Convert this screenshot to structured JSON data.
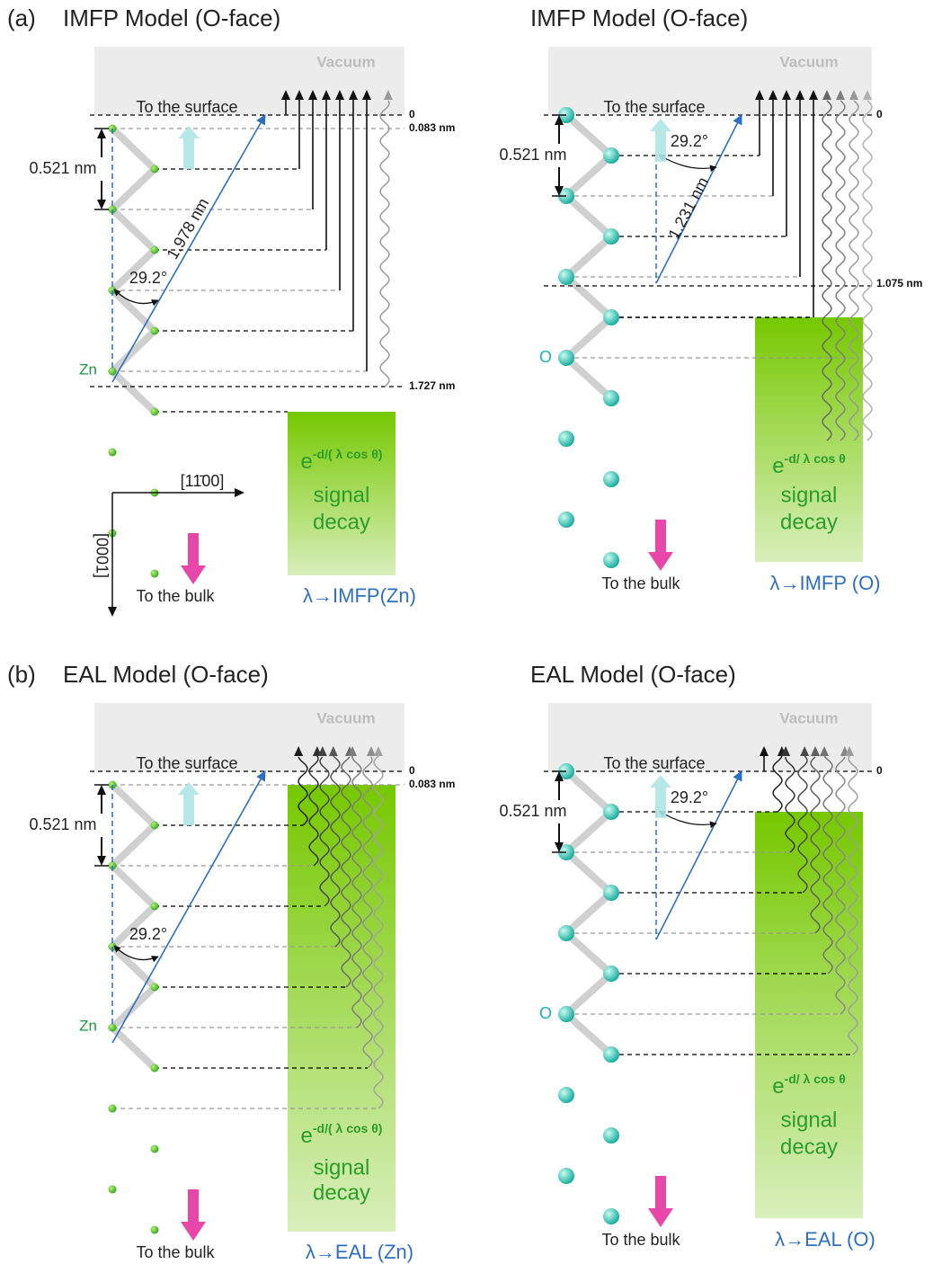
{
  "panels": [
    {
      "label": "(a)",
      "title": "IMFP Model (O-face)",
      "vacuum": "Vacuum",
      "surface": "To the surface",
      "spacing": "0.521 nm",
      "angle": "29.2°",
      "depth_top": "0",
      "depth_mark": "0.083 nm",
      "path_length": "1.978 nm",
      "depth_bottom": "1.727 nm",
      "atom": "Zn",
      "formula": {
        "base": "e",
        "exponent": "-d/( λ cos θ)"
      },
      "decay": [
        "signal",
        "decay"
      ],
      "bulk": "To the bulk",
      "lambda": "λ→IMFP(Zn)",
      "axes": {
        "x": "[11̄00]",
        "y": "[0001]"
      }
    },
    {
      "title": "IMFP Model (O-face)",
      "vacuum": "Vacuum",
      "surface": "To the surface",
      "spacing": "0.521 nm",
      "angle": "29.2°",
      "depth_top": "0",
      "depth_mark": "1.075 nm",
      "path_length": "1.231 nm",
      "atom": "O",
      "formula": {
        "base": "e",
        "exponent": "-d/ λ cos θ"
      },
      "decay": [
        "signal",
        "decay"
      ],
      "bulk": "To the bulk",
      "lambda": "λ→IMFP (O)"
    },
    {
      "label": "(b)",
      "title": "EAL Model (O-face)",
      "vacuum": "Vacuum",
      "surface": "To the surface",
      "spacing": "0.521 nm",
      "angle": "29.2°",
      "depth_top": "0",
      "depth_mark": "0.083 nm",
      "atom": "Zn",
      "formula": {
        "base": "e",
        "exponent": "-d/( λ cos θ)"
      },
      "decay": [
        "signal",
        "decay"
      ],
      "bulk": "To the bulk",
      "lambda": "λ→EAL (Zn)"
    },
    {
      "title": "EAL Model (O-face)",
      "vacuum": "Vacuum",
      "surface": "To the surface",
      "spacing": "0.521 nm",
      "angle": "29.2°",
      "depth_top": "0",
      "atom": "O",
      "formula": {
        "base": "e",
        "exponent": "-d/ λ cos θ"
      },
      "decay": [
        "signal",
        "decay"
      ],
      "bulk": "To the bulk",
      "lambda": "λ→EAL (O)"
    }
  ]
}
